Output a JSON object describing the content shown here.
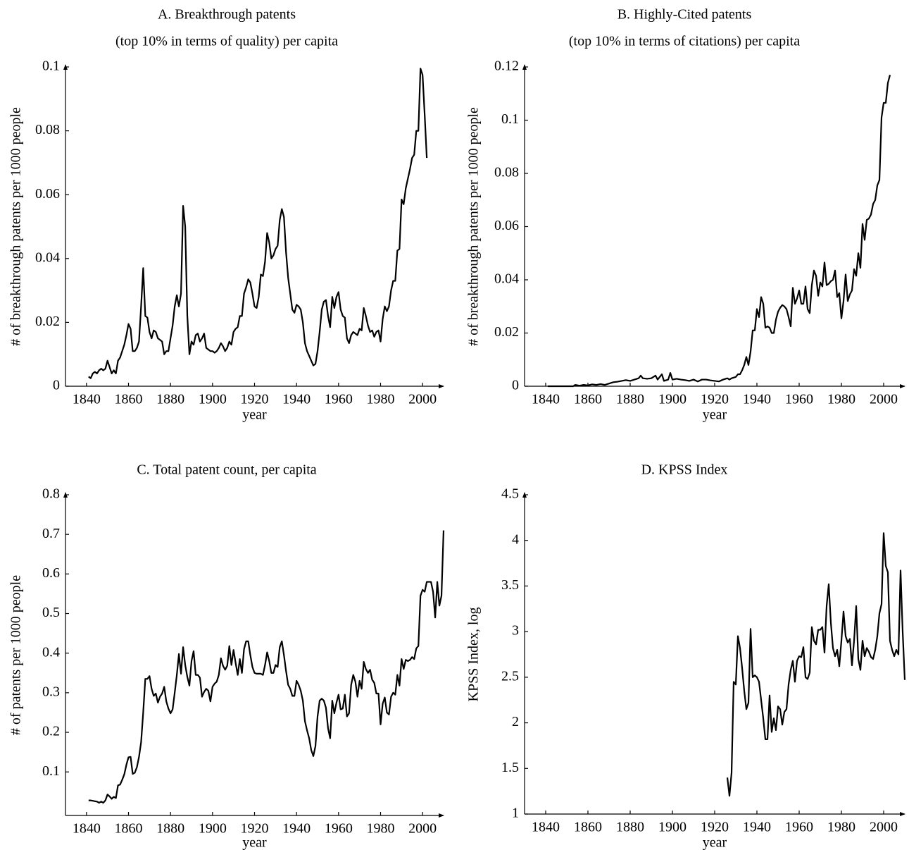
{
  "chart_data": [
    {
      "type": "line",
      "title": "A. Breakthrough patents",
      "subtitle": "(top 10% in terms of quality) per capita",
      "xlabel": "year",
      "ylabel": "# of breakthrough patents per 1000 people",
      "color": "#000000",
      "xlim": [
        1830,
        2010
      ],
      "xticks": [
        1840,
        1860,
        1880,
        1900,
        1920,
        1940,
        1960,
        1980,
        2000
      ],
      "ylim": [
        0,
        0.1
      ],
      "yticks": [
        0,
        0.02,
        0.04,
        0.06,
        0.08,
        0.1
      ],
      "x": [
        1841,
        1842,
        1843,
        1844,
        1845,
        1846,
        1847,
        1848,
        1849,
        1850,
        1851,
        1852,
        1853,
        1854,
        1855,
        1856,
        1857,
        1858,
        1859,
        1860,
        1861,
        1862,
        1863,
        1864,
        1865,
        1866,
        1867,
        1868,
        1869,
        1870,
        1871,
        1872,
        1873,
        1874,
        1875,
        1876,
        1877,
        1878,
        1879,
        1880,
        1881,
        1882,
        1883,
        1884,
        1885,
        1886,
        1887,
        1888,
        1889,
        1890,
        1891,
        1892,
        1893,
        1894,
        1895,
        1896,
        1897,
        1898,
        1899,
        1900,
        1901,
        1902,
        1903,
        1904,
        1905,
        1906,
        1907,
        1908,
        1909,
        1910,
        1911,
        1912,
        1913,
        1914,
        1915,
        1916,
        1917,
        1918,
        1919,
        1920,
        1921,
        1922,
        1923,
        1924,
        1925,
        1926,
        1927,
        1928,
        1929,
        1930,
        1931,
        1932,
        1933,
        1934,
        1935,
        1936,
        1937,
        1938,
        1939,
        1940,
        1941,
        1942,
        1943,
        1944,
        1945,
        1946,
        1947,
        1948,
        1949,
        1950,
        1951,
        1952,
        1953,
        1954,
        1955,
        1956,
        1957,
        1958,
        1959,
        1960,
        1961,
        1962,
        1963,
        1964,
        1965,
        1966,
        1967,
        1968,
        1969,
        1970,
        1971,
        1972,
        1973,
        1974,
        1975,
        1976,
        1977,
        1978,
        1979,
        1980,
        1981,
        1982,
        1983,
        1984,
        1985,
        1986,
        1987,
        1988,
        1989,
        1990,
        1991,
        1992,
        1993,
        1994,
        1995,
        1996,
        1997,
        1998,
        1999,
        2000,
        2001,
        2002
      ],
      "values": [
        0.003,
        0.0025,
        0.004,
        0.0045,
        0.004,
        0.005,
        0.0055,
        0.005,
        0.0055,
        0.008,
        0.006,
        0.004,
        0.005,
        0.004,
        0.008,
        0.009,
        0.011,
        0.013,
        0.016,
        0.0195,
        0.018,
        0.011,
        0.011,
        0.012,
        0.014,
        0.025,
        0.037,
        0.022,
        0.0215,
        0.017,
        0.015,
        0.0175,
        0.017,
        0.015,
        0.0145,
        0.014,
        0.01,
        0.011,
        0.011,
        0.015,
        0.019,
        0.025,
        0.0285,
        0.025,
        0.029,
        0.0565,
        0.05,
        0.022,
        0.01,
        0.014,
        0.013,
        0.016,
        0.0165,
        0.014,
        0.015,
        0.0165,
        0.012,
        0.0115,
        0.011,
        0.011,
        0.0105,
        0.011,
        0.012,
        0.0135,
        0.0125,
        0.011,
        0.012,
        0.014,
        0.013,
        0.017,
        0.018,
        0.0185,
        0.022,
        0.022,
        0.029,
        0.031,
        0.0335,
        0.0325,
        0.029,
        0.025,
        0.0245,
        0.028,
        0.035,
        0.0345,
        0.039,
        0.048,
        0.045,
        0.04,
        0.041,
        0.043,
        0.044,
        0.052,
        0.0555,
        0.053,
        0.042,
        0.034,
        0.029,
        0.024,
        0.023,
        0.0255,
        0.025,
        0.024,
        0.02,
        0.0135,
        0.011,
        0.0095,
        0.008,
        0.0065,
        0.007,
        0.011,
        0.017,
        0.024,
        0.0265,
        0.027,
        0.022,
        0.0185,
        0.028,
        0.0245,
        0.028,
        0.0295,
        0.024,
        0.022,
        0.0215,
        0.015,
        0.0135,
        0.016,
        0.017,
        0.0165,
        0.016,
        0.018,
        0.0175,
        0.0245,
        0.022,
        0.019,
        0.017,
        0.0175,
        0.0155,
        0.017,
        0.0175,
        0.014,
        0.021,
        0.025,
        0.0235,
        0.025,
        0.03,
        0.033,
        0.033,
        0.0425,
        0.043,
        0.0585,
        0.057,
        0.062,
        0.065,
        0.068,
        0.0715,
        0.0725,
        0.08,
        0.08,
        0.0995,
        0.0975,
        0.085,
        0.0715
      ]
    },
    {
      "type": "line",
      "title": "B. Highly-Cited patents",
      "subtitle": "(top 10% in terms of citations) per capita",
      "xlabel": "year",
      "ylabel": "# of breakthrough patents per 1000 people",
      "color": "#000000",
      "xlim": [
        1830,
        2010
      ],
      "xticks": [
        1840,
        1860,
        1880,
        1900,
        1920,
        1940,
        1960,
        1980,
        2000
      ],
      "ylim": [
        0,
        0.12
      ],
      "yticks": [
        0,
        0.02,
        0.04,
        0.06,
        0.08,
        0.1,
        0.12
      ],
      "x": [
        1841,
        1845,
        1850,
        1853,
        1854,
        1856,
        1858,
        1860,
        1862,
        1864,
        1866,
        1868,
        1870,
        1872,
        1874,
        1876,
        1878,
        1880,
        1882,
        1884,
        1885,
        1886,
        1888,
        1890,
        1892,
        1893,
        1895,
        1896,
        1898,
        1899,
        1900,
        1902,
        1904,
        1906,
        1908,
        1910,
        1912,
        1914,
        1916,
        1918,
        1920,
        1922,
        1924,
        1926,
        1927,
        1928,
        1930,
        1931,
        1932,
        1933,
        1934,
        1935,
        1936,
        1937,
        1938,
        1939,
        1940,
        1941,
        1942,
        1943,
        1944,
        1945,
        1946,
        1947,
        1948,
        1949,
        1950,
        1951,
        1952,
        1953,
        1954,
        1955,
        1956,
        1957,
        1958,
        1959,
        1960,
        1961,
        1962,
        1963,
        1964,
        1965,
        1966,
        1967,
        1968,
        1969,
        1970,
        1971,
        1972,
        1973,
        1974,
        1975,
        1976,
        1977,
        1978,
        1979,
        1980,
        1981,
        1982,
        1983,
        1984,
        1985,
        1986,
        1987,
        1988,
        1989,
        1990,
        1991,
        1992,
        1993,
        1994,
        1995,
        1996,
        1997,
        1998,
        1999,
        2000,
        2001,
        2002,
        2003
      ],
      "values": [
        0,
        0,
        0,
        0,
        0.0005,
        0.0002,
        0.0005,
        0.0003,
        0.0007,
        0.0005,
        0.0008,
        0.0005,
        0.001,
        0.0015,
        0.0017,
        0.002,
        0.0023,
        0.002,
        0.0025,
        0.003,
        0.004,
        0.003,
        0.0028,
        0.003,
        0.004,
        0.0025,
        0.0045,
        0.002,
        0.0025,
        0.005,
        0.0025,
        0.0028,
        0.0025,
        0.0023,
        0.002,
        0.0025,
        0.0018,
        0.0025,
        0.0025,
        0.0022,
        0.002,
        0.0018,
        0.0025,
        0.003,
        0.0025,
        0.003,
        0.0035,
        0.0045,
        0.0045,
        0.006,
        0.008,
        0.011,
        0.008,
        0.013,
        0.021,
        0.021,
        0.029,
        0.026,
        0.0335,
        0.031,
        0.022,
        0.0225,
        0.022,
        0.02,
        0.02,
        0.025,
        0.028,
        0.0295,
        0.0305,
        0.03,
        0.029,
        0.026,
        0.0225,
        0.037,
        0.031,
        0.033,
        0.036,
        0.031,
        0.031,
        0.0375,
        0.029,
        0.0275,
        0.038,
        0.0435,
        0.0415,
        0.034,
        0.039,
        0.0375,
        0.0465,
        0.038,
        0.0385,
        0.0395,
        0.04,
        0.0435,
        0.0335,
        0.035,
        0.0255,
        0.032,
        0.042,
        0.032,
        0.0345,
        0.036,
        0.044,
        0.0415,
        0.05,
        0.0445,
        0.061,
        0.055,
        0.0625,
        0.063,
        0.0645,
        0.0685,
        0.07,
        0.0755,
        0.0775,
        0.101,
        0.1065,
        0.1065,
        0.114,
        0.117
      ]
    },
    {
      "type": "line",
      "title": "C. Total patent count, per capita",
      "xlabel": "year",
      "ylabel": "# of patents per 1000 people",
      "color": "#000000",
      "xlim": [
        1830,
        2010
      ],
      "xticks": [
        1840,
        1860,
        1880,
        1900,
        1920,
        1940,
        1960,
        1980,
        2000
      ],
      "ylim": [
        -0.01,
        0.8
      ],
      "yticks": [
        0.1,
        0.2,
        0.3,
        0.4,
        0.5,
        0.6,
        0.7,
        0.8
      ],
      "x": [
        1841,
        1842,
        1843,
        1844,
        1845,
        1846,
        1847,
        1848,
        1849,
        1850,
        1851,
        1852,
        1853,
        1854,
        1855,
        1856,
        1857,
        1858,
        1859,
        1860,
        1861,
        1862,
        1863,
        1864,
        1865,
        1866,
        1867,
        1868,
        1869,
        1870,
        1871,
        1872,
        1873,
        1874,
        1875,
        1876,
        1877,
        1878,
        1879,
        1880,
        1881,
        1882,
        1883,
        1884,
        1885,
        1886,
        1887,
        1888,
        1889,
        1890,
        1891,
        1892,
        1893,
        1894,
        1895,
        1896,
        1897,
        1898,
        1899,
        1900,
        1901,
        1902,
        1903,
        1904,
        1905,
        1906,
        1907,
        1908,
        1909,
        1910,
        1911,
        1912,
        1913,
        1914,
        1915,
        1916,
        1917,
        1918,
        1919,
        1920,
        1921,
        1922,
        1923,
        1924,
        1925,
        1926,
        1927,
        1928,
        1929,
        1930,
        1931,
        1932,
        1933,
        1934,
        1935,
        1936,
        1937,
        1938,
        1939,
        1940,
        1941,
        1942,
        1943,
        1944,
        1945,
        1946,
        1947,
        1948,
        1949,
        1950,
        1951,
        1952,
        1953,
        1954,
        1955,
        1956,
        1957,
        1958,
        1959,
        1960,
        1961,
        1962,
        1963,
        1964,
        1965,
        1966,
        1967,
        1968,
        1969,
        1970,
        1971,
        1972,
        1973,
        1974,
        1975,
        1976,
        1977,
        1978,
        1979,
        1980,
        1981,
        1982,
        1983,
        1984,
        1985,
        1986,
        1987,
        1988,
        1989,
        1990,
        1991,
        1992,
        1993,
        1994,
        1995,
        1996,
        1997,
        1998,
        1999,
        2000,
        2001,
        2002,
        2003,
        2004,
        2005,
        2006,
        2007,
        2008,
        2009,
        2010
      ],
      "values": [
        0.028,
        0.028,
        0.027,
        0.026,
        0.025,
        0.022,
        0.025,
        0.022,
        0.028,
        0.043,
        0.038,
        0.032,
        0.037,
        0.034,
        0.066,
        0.068,
        0.08,
        0.094,
        0.118,
        0.137,
        0.138,
        0.095,
        0.098,
        0.112,
        0.138,
        0.175,
        0.25,
        0.335,
        0.335,
        0.342,
        0.31,
        0.292,
        0.298,
        0.275,
        0.29,
        0.298,
        0.315,
        0.278,
        0.26,
        0.248,
        0.258,
        0.3,
        0.345,
        0.398,
        0.348,
        0.415,
        0.37,
        0.34,
        0.318,
        0.38,
        0.405,
        0.345,
        0.345,
        0.338,
        0.29,
        0.302,
        0.31,
        0.305,
        0.278,
        0.315,
        0.323,
        0.328,
        0.345,
        0.387,
        0.368,
        0.358,
        0.368,
        0.418,
        0.37,
        0.408,
        0.375,
        0.345,
        0.385,
        0.35,
        0.41,
        0.43,
        0.43,
        0.395,
        0.365,
        0.35,
        0.348,
        0.348,
        0.348,
        0.345,
        0.37,
        0.402,
        0.38,
        0.35,
        0.35,
        0.37,
        0.365,
        0.415,
        0.43,
        0.395,
        0.355,
        0.32,
        0.31,
        0.292,
        0.292,
        0.33,
        0.32,
        0.305,
        0.28,
        0.228,
        0.205,
        0.185,
        0.155,
        0.14,
        0.165,
        0.24,
        0.28,
        0.285,
        0.28,
        0.262,
        0.21,
        0.185,
        0.28,
        0.248,
        0.275,
        0.295,
        0.258,
        0.26,
        0.295,
        0.24,
        0.248,
        0.32,
        0.345,
        0.328,
        0.29,
        0.33,
        0.31,
        0.378,
        0.36,
        0.35,
        0.358,
        0.333,
        0.325,
        0.298,
        0.298,
        0.22,
        0.272,
        0.288,
        0.25,
        0.245,
        0.29,
        0.3,
        0.295,
        0.345,
        0.318,
        0.385,
        0.36,
        0.383,
        0.38,
        0.383,
        0.39,
        0.385,
        0.412,
        0.418,
        0.545,
        0.56,
        0.555,
        0.58,
        0.58,
        0.58,
        0.555,
        0.49,
        0.58,
        0.52,
        0.545,
        0.71
      ]
    },
    {
      "type": "line",
      "title": "D. KPSS Index",
      "xlabel": "year",
      "ylabel": "KPSS Index, log",
      "color": "#000000",
      "xlim": [
        1830,
        2010
      ],
      "xticks": [
        1840,
        1860,
        1880,
        1900,
        1920,
        1940,
        1960,
        1980,
        2000
      ],
      "ylim": [
        1,
        4.5
      ],
      "yticks": [
        1,
        1.5,
        2,
        2.5,
        3,
        3.5,
        4,
        4.5
      ],
      "x": [
        1926,
        1927,
        1928,
        1929,
        1930,
        1931,
        1932,
        1933,
        1934,
        1935,
        1936,
        1937,
        1938,
        1939,
        1940,
        1941,
        1942,
        1943,
        1944,
        1945,
        1946,
        1947,
        1948,
        1949,
        1950,
        1951,
        1952,
        1953,
        1954,
        1955,
        1956,
        1957,
        1958,
        1959,
        1960,
        1961,
        1962,
        1963,
        1964,
        1965,
        1966,
        1967,
        1968,
        1969,
        1970,
        1971,
        1972,
        1973,
        1974,
        1975,
        1976,
        1977,
        1978,
        1979,
        1980,
        1981,
        1982,
        1983,
        1984,
        1985,
        1986,
        1987,
        1988,
        1989,
        1990,
        1991,
        1992,
        1993,
        1994,
        1995,
        1996,
        1997,
        1998,
        1999,
        2000,
        2001,
        2002,
        2003,
        2004,
        2005,
        2006,
        2007,
        2008,
        2009,
        2010
      ],
      "values": [
        1.4,
        1.2,
        1.45,
        2.45,
        2.42,
        2.95,
        2.82,
        2.6,
        2.35,
        2.15,
        2.22,
        3.03,
        2.5,
        2.52,
        2.5,
        2.45,
        2.25,
        2.05,
        1.82,
        1.82,
        2.3,
        1.9,
        2.05,
        1.92,
        2.18,
        2.15,
        1.98,
        2.12,
        2.15,
        2.42,
        2.58,
        2.68,
        2.45,
        2.68,
        2.73,
        2.72,
        2.83,
        2.5,
        2.48,
        2.55,
        3.05,
        2.9,
        2.86,
        3.02,
        3.02,
        3.05,
        2.77,
        3.28,
        3.52,
        3.1,
        2.82,
        2.73,
        2.8,
        2.62,
        2.9,
        3.22,
        2.95,
        2.88,
        2.92,
        2.63,
        2.9,
        3.28,
        2.7,
        2.58,
        2.9,
        2.73,
        2.82,
        2.78,
        2.72,
        2.7,
        2.8,
        2.95,
        3.2,
        3.3,
        4.08,
        3.72,
        3.65,
        2.9,
        2.8,
        2.73,
        2.8,
        2.75,
        3.67,
        3.0,
        2.47
      ]
    }
  ]
}
